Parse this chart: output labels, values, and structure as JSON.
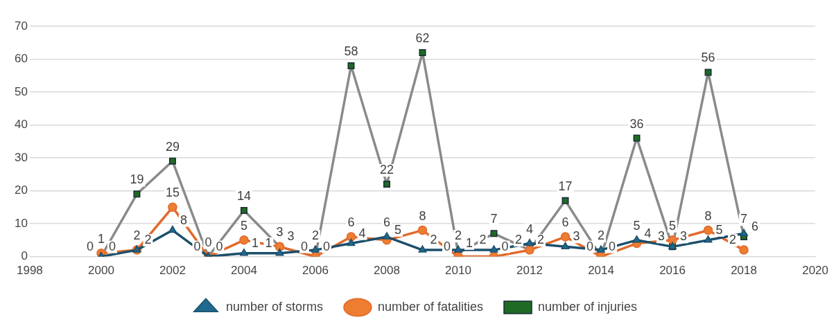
{
  "chart_data": {
    "type": "line",
    "x": [
      2000,
      2001,
      2002,
      2003,
      2004,
      2005,
      2006,
      2007,
      2008,
      2009,
      2010,
      2011,
      2012,
      2013,
      2014,
      2015,
      2016,
      2017,
      2018
    ],
    "series": [
      {
        "name": "number of storms",
        "color": "#1b4f6b",
        "marker": "triangle",
        "values": [
          0,
          2,
          8,
          0,
          1,
          1,
          2,
          4,
          6,
          2,
          2,
          2,
          4,
          3,
          2,
          5,
          3,
          5,
          7
        ]
      },
      {
        "name": "number of fatalities",
        "color": "#e2692a",
        "marker": "circle",
        "values": [
          1,
          2,
          15,
          0,
          5,
          3,
          0,
          6,
          5,
          8,
          0,
          0,
          2,
          6,
          0,
          4,
          5,
          8,
          2
        ]
      },
      {
        "name": "number of injuries",
        "color": "#8a8a8a",
        "marker": "square",
        "values": [
          0,
          19,
          29,
          0,
          14,
          3,
          0,
          58,
          22,
          62,
          1,
          7,
          2,
          17,
          0,
          36,
          3,
          56,
          6
        ]
      }
    ],
    "xlim": [
      1998,
      2020
    ],
    "xticks": [
      1998,
      2000,
      2002,
      2004,
      2006,
      2008,
      2010,
      2012,
      2014,
      2016,
      2018,
      2020
    ],
    "ylim": [
      0,
      70
    ],
    "yticks": [
      0,
      10,
      20,
      30,
      40,
      50,
      60,
      70
    ],
    "grid": "y",
    "legend": "bottom",
    "data_labels": true,
    "line_style": "solid"
  }
}
